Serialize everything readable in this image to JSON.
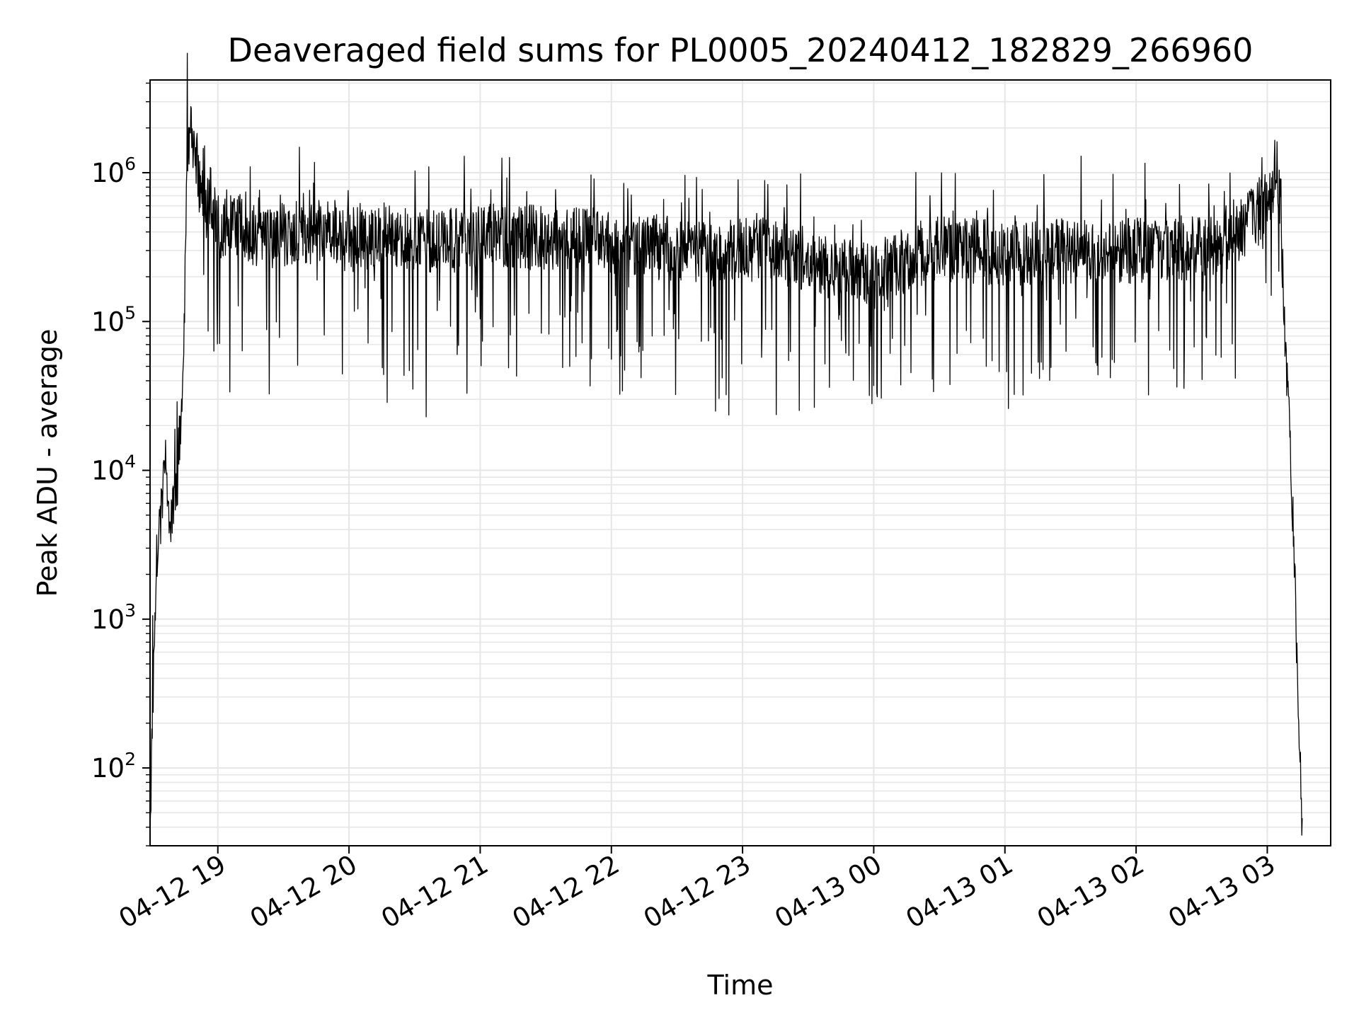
{
  "chart_data": {
    "type": "line",
    "title": "Deaveraged field sums for PL0005_20240412_182829_266960",
    "xlabel": "Time",
    "ylabel": "Peak ADU - average",
    "y_scale": "log",
    "ylim": [
      30,
      4200000
    ],
    "xlim": [
      "04-12 18:29",
      "04-13 03:29"
    ],
    "x_ticks": [
      "04-12 19",
      "04-12 20",
      "04-12 21",
      "04-12 22",
      "04-12 23",
      "04-13 00",
      "04-13 01",
      "04-13 02",
      "04-13 03"
    ],
    "y_ticks": [
      {
        "base": "10",
        "exp": "2",
        "value": 100
      },
      {
        "base": "10",
        "exp": "3",
        "value": 1000
      },
      {
        "base": "10",
        "exp": "4",
        "value": 10000
      },
      {
        "base": "10",
        "exp": "5",
        "value": 100000
      },
      {
        "base": "10",
        "exp": "6",
        "value": 1000000
      }
    ],
    "grid": true,
    "legend": "none",
    "line_color": "#000000",
    "grid_color": "#e6e6e6",
    "series": [
      {
        "x": [
          "04-12 18:29",
          "04-12 18:30",
          "04-12 18:32",
          "04-12 18:34",
          "04-12 18:36",
          "04-12 18:38",
          "04-12 18:40",
          "04-12 18:42",
          "04-12 18:44",
          "04-12 18:46",
          "04-12 18:48",
          "04-12 18:50",
          "04-12 18:52",
          "04-12 18:54",
          "04-12 18:56",
          "04-12 18:58",
          "04-12 19:00",
          "04-12 19:05",
          "04-12 19:10",
          "04-12 19:20",
          "04-12 19:30",
          "04-12 19:40",
          "04-12 19:50",
          "04-12 20:00",
          "04-12 20:15",
          "04-12 20:30",
          "04-12 20:45",
          "04-12 21:00",
          "04-12 21:15",
          "04-12 21:30",
          "04-12 21:45",
          "04-12 22:00",
          "04-12 22:15",
          "04-12 22:30",
          "04-12 22:45",
          "04-12 23:00",
          "04-12 23:15",
          "04-12 23:30",
          "04-12 23:45",
          "04-13 00:00",
          "04-13 00:15",
          "04-13 00:30",
          "04-13 00:45",
          "04-13 01:00",
          "04-13 01:15",
          "04-13 01:30",
          "04-13 01:45",
          "04-13 02:00",
          "04-13 02:15",
          "04-13 02:30",
          "04-13 02:45",
          "04-13 02:50",
          "04-13 02:55",
          "04-13 03:00",
          "04-13 03:02",
          "04-13 03:04",
          "04-13 03:06",
          "04-13 03:08",
          "04-13 03:10",
          "04-13 03:12",
          "04-13 03:14",
          "04-13 03:16"
        ],
        "y": [
          40,
          200,
          2500,
          5000,
          15000,
          4000,
          6000,
          10000,
          30000,
          1500000,
          2000000,
          1300000,
          800000,
          500000,
          700000,
          600000,
          450000,
          400000,
          450000,
          350000,
          380000,
          400000,
          420000,
          350000,
          380000,
          360000,
          350000,
          370000,
          380000,
          360000,
          350000,
          340000,
          330000,
          300000,
          280000,
          310000,
          300000,
          260000,
          220000,
          200000,
          260000,
          310000,
          300000,
          280000,
          290000,
          300000,
          290000,
          300000,
          310000,
          320000,
          380000,
          450000,
          550000,
          600000,
          800000,
          1100000,
          700000,
          80000,
          20000,
          4000,
          300,
          40
        ]
      }
    ]
  }
}
